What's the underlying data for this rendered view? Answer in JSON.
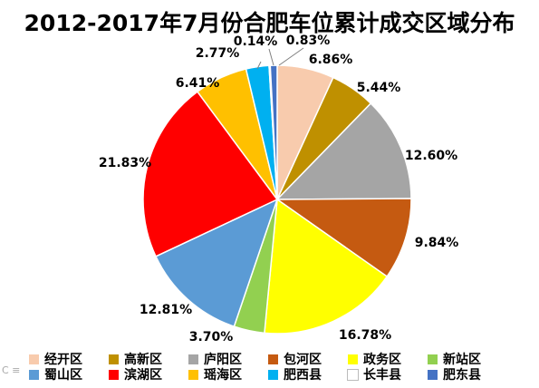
{
  "chart_data": {
    "type": "pie",
    "title": "2012-2017年7月份合肥车位累计成交区域分布",
    "legend_position": "bottom",
    "categories": [
      "经开区",
      "高新区",
      "庐阳区",
      "包河区",
      "政务区",
      "新站区",
      "蜀山区",
      "滨湖区",
      "瑶海区",
      "肥西县",
      "长丰县",
      "肥东县"
    ],
    "values": [
      6.86,
      5.44,
      12.6,
      9.84,
      16.78,
      3.7,
      12.81,
      21.83,
      6.41,
      2.77,
      0.14,
      0.83
    ],
    "data_labels": [
      "6.86%",
      "5.44%",
      "12.60%",
      "9.84%",
      "16.78%",
      "3.70%",
      "12.81%",
      "21.83%",
      "6.41%",
      "2.77%",
      "0.14%",
      "0.83%"
    ],
    "colors": [
      "#F8CBAD",
      "#BF9000",
      "#A5A5A5",
      "#C55A11",
      "#FFFF00",
      "#92D050",
      "#5B9BD5",
      "#FF0000",
      "#FFC000",
      "#00B0F0",
      "#FFFFFF",
      "#4472C4"
    ]
  },
  "watermark": "C ≡"
}
